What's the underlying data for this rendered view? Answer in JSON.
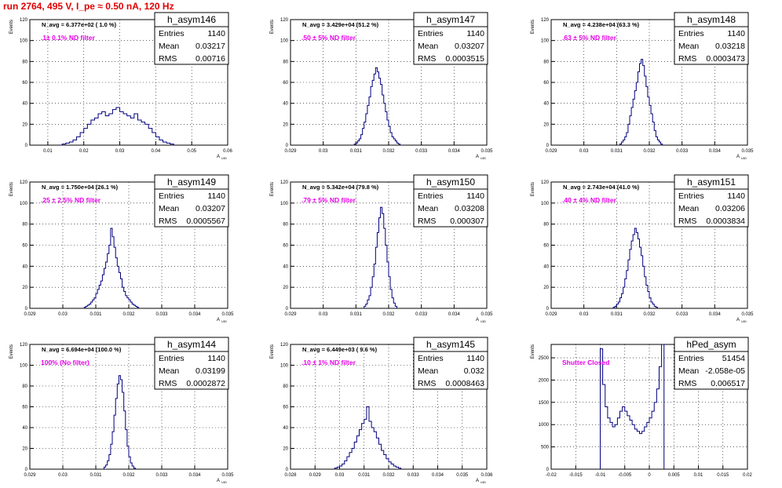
{
  "run_title": "run 2764,   495 V, I_pe ≈ 0.50 nA, 120 Hz",
  "colors": {
    "line": "#00007f",
    "annotation": "#e800e8",
    "title": "#e00000",
    "grid": "#000000"
  },
  "chart_data": [
    {
      "type": "bar",
      "stat_title": "h_asym146",
      "navg": "N_avg = 6.377e+02 ( 1.0 %)",
      "filter": ".1± 0.1% ND filter",
      "stats": [
        [
          "Entries",
          "1140"
        ],
        [
          "Mean",
          "0.03217"
        ],
        [
          "RMS",
          "0.00716"
        ]
      ],
      "xlabel": "A_UID",
      "ylabel": "Events",
      "xlim": [
        0.005,
        0.06
      ],
      "ylim": [
        0,
        120
      ],
      "xticks": [
        0.01,
        0.02,
        0.03,
        0.04,
        0.05,
        0.06
      ],
      "xticklabels": [
        "0.01",
        "0.02",
        "0.03",
        "0.04",
        "0.05",
        "0.06"
      ],
      "yticks": [
        0,
        20,
        40,
        60,
        80,
        100,
        120
      ],
      "bin_start": 0.014,
      "bin_width": 0.001,
      "values": [
        1,
        2,
        3,
        5,
        8,
        12,
        16,
        20,
        24,
        26,
        30,
        32,
        28,
        30,
        34,
        36,
        32,
        30,
        28,
        26,
        30,
        24,
        22,
        20,
        16,
        12,
        8,
        5,
        3,
        2,
        1
      ]
    },
    {
      "type": "bar",
      "stat_title": "h_asym147",
      "navg": "N_avg = 3.429e+04 (51.2 %)",
      "filter": ".50 ± 5% ND filter",
      "stats": [
        [
          "Entries",
          "1140"
        ],
        [
          "Mean",
          "0.03207"
        ],
        [
          "RMS",
          "0.0003515"
        ]
      ],
      "xlabel": "A_UID",
      "ylabel": "Events",
      "xlim": [
        0.029,
        0.035
      ],
      "ylim": [
        0,
        120
      ],
      "xticks": [
        0.029,
        0.03,
        0.031,
        0.032,
        0.033,
        0.034,
        0.035
      ],
      "xticklabels": [
        "0.029",
        "0.03",
        "0.031",
        "0.032",
        "0.033",
        "0.034",
        "0.035"
      ],
      "yticks": [
        0,
        20,
        40,
        60,
        80,
        100,
        120
      ],
      "bin_start": 0.03095,
      "bin_width": 5e-05,
      "values": [
        1,
        2,
        4,
        6,
        10,
        16,
        22,
        30,
        38,
        46,
        56,
        62,
        68,
        74,
        70,
        64,
        58,
        48,
        40,
        32,
        24,
        18,
        12,
        8,
        6,
        4,
        2,
        1
      ]
    },
    {
      "type": "bar",
      "stat_title": "h_asym148",
      "navg": "N_avg = 4.238e+04 (63.3 %)",
      "filter": ".63 ± 5% ND filter",
      "stats": [
        [
          "Entries",
          "1140"
        ],
        [
          "Mean",
          "0.03218"
        ],
        [
          "RMS",
          "0.0003473"
        ]
      ],
      "xlabel": "A_UID",
      "ylabel": "Events",
      "xlim": [
        0.029,
        0.035
      ],
      "ylim": [
        0,
        120
      ],
      "xticks": [
        0.029,
        0.03,
        0.031,
        0.032,
        0.033,
        0.034,
        0.035
      ],
      "xticklabels": [
        "0.029",
        "0.03",
        "0.031",
        "0.032",
        "0.033",
        "0.034",
        "0.035"
      ],
      "yticks": [
        0,
        20,
        40,
        60,
        80,
        100,
        120
      ],
      "bin_start": 0.0311,
      "bin_width": 5e-05,
      "values": [
        1,
        3,
        5,
        8,
        12,
        20,
        28,
        36,
        44,
        52,
        60,
        70,
        78,
        82,
        76,
        66,
        56,
        46,
        38,
        30,
        22,
        14,
        8,
        5,
        3,
        1
      ]
    },
    {
      "type": "bar",
      "stat_title": "h_asym149",
      "navg": "N_avg = 1.750e+04 (26.1 %)",
      "filter": ".25 ± 2.5% ND filter",
      "stats": [
        [
          "Entries",
          "1140"
        ],
        [
          "Mean",
          "0.03207"
        ],
        [
          "RMS",
          "0.0005567"
        ]
      ],
      "xlabel": "A_UID",
      "ylabel": "Events",
      "xlim": [
        0.029,
        0.035
      ],
      "ylim": [
        0,
        120
      ],
      "xticks": [
        0.029,
        0.03,
        0.031,
        0.032,
        0.033,
        0.034,
        0.035
      ],
      "xticklabels": [
        "0.029",
        "0.03",
        "0.031",
        "0.032",
        "0.033",
        "0.034",
        "0.035"
      ],
      "yticks": [
        0,
        20,
        40,
        60,
        80,
        100,
        120
      ],
      "bin_start": 0.03065,
      "bin_width": 5e-05,
      "values": [
        1,
        2,
        3,
        4,
        6,
        8,
        10,
        14,
        18,
        22,
        26,
        32,
        38,
        44,
        52,
        60,
        76,
        68,
        58,
        48,
        40,
        34,
        28,
        20,
        16,
        12,
        10,
        8,
        6,
        4,
        3,
        2,
        1
      ]
    },
    {
      "type": "bar",
      "stat_title": "h_asym150",
      "navg": "N_avg = 5.342e+04 (79.8 %)",
      "filter": ".79 ± 5% ND filter",
      "stats": [
        [
          "Entries",
          "1140"
        ],
        [
          "Mean",
          "0.03208"
        ],
        [
          "RMS",
          "0.000307"
        ]
      ],
      "xlabel": "A_UID",
      "ylabel": "Events",
      "xlim": [
        0.029,
        0.035
      ],
      "ylim": [
        0,
        120
      ],
      "xticks": [
        0.029,
        0.03,
        0.031,
        0.032,
        0.033,
        0.034,
        0.035
      ],
      "xticklabels": [
        "0.029",
        "0.03",
        "0.031",
        "0.032",
        "0.033",
        "0.034",
        "0.035"
      ],
      "yticks": [
        0,
        20,
        40,
        60,
        80,
        100,
        120
      ],
      "bin_start": 0.03125,
      "bin_width": 5e-05,
      "values": [
        2,
        4,
        8,
        12,
        20,
        30,
        42,
        58,
        72,
        86,
        96,
        90,
        76,
        60,
        44,
        30,
        18,
        10,
        5,
        2
      ]
    },
    {
      "type": "bar",
      "stat_title": "h_asym151",
      "navg": "N_avg = 2.743e+04 (41.0 %)",
      "filter": ".40 ± 4% ND filter",
      "stats": [
        [
          "Entries",
          "1140"
        ],
        [
          "Mean",
          "0.03206"
        ],
        [
          "RMS",
          "0.0003834"
        ]
      ],
      "xlabel": "A_UID",
      "ylabel": "Events",
      "xlim": [
        0.029,
        0.035
      ],
      "ylim": [
        0,
        120
      ],
      "xticks": [
        0.029,
        0.03,
        0.031,
        0.032,
        0.033,
        0.034,
        0.035
      ],
      "xticklabels": [
        "0.029",
        "0.03",
        "0.031",
        "0.032",
        "0.033",
        "0.034",
        "0.035"
      ],
      "yticks": [
        0,
        20,
        40,
        60,
        80,
        100,
        120
      ],
      "bin_start": 0.0309,
      "bin_width": 5e-05,
      "values": [
        1,
        2,
        4,
        6,
        10,
        14,
        20,
        28,
        36,
        46,
        56,
        64,
        70,
        76,
        72,
        66,
        58,
        50,
        40,
        30,
        22,
        16,
        10,
        6,
        4,
        2,
        1
      ]
    },
    {
      "type": "bar",
      "stat_title": "h_asym144",
      "navg": "N_avg = 6.694e+04 (100.0 %)",
      "filter": "100% (No filter)",
      "stats": [
        [
          "Entries",
          "1140"
        ],
        [
          "Mean",
          "0.03199"
        ],
        [
          "RMS",
          "0.0002872"
        ]
      ],
      "xlabel": "A_UID",
      "ylabel": "Events",
      "xlim": [
        0.029,
        0.035
      ],
      "ylim": [
        0,
        120
      ],
      "xticks": [
        0.029,
        0.03,
        0.031,
        0.032,
        0.033,
        0.034,
        0.035
      ],
      "xticklabels": [
        "0.029",
        "0.03",
        "0.031",
        "0.032",
        "0.033",
        "0.034",
        "0.035"
      ],
      "yticks": [
        0,
        20,
        40,
        60,
        80,
        100,
        120
      ],
      "bin_start": 0.03125,
      "bin_width": 5e-05,
      "values": [
        2,
        4,
        8,
        14,
        24,
        36,
        52,
        68,
        82,
        90,
        86,
        74,
        56,
        38,
        22,
        12,
        6,
        3,
        1
      ]
    },
    {
      "type": "bar",
      "stat_title": "h_asym145",
      "navg": "N_avg = 6.449e+03 ( 9.6 %)",
      "filter": ".10 ± 1% ND filter",
      "stats": [
        [
          "Entries",
          "1140"
        ],
        [
          "Mean",
          "0.032"
        ],
        [
          "RMS",
          "0.0008463"
        ]
      ],
      "xlabel": "A_UID",
      "ylabel": "Events",
      "xlim": [
        0.028,
        0.036
      ],
      "ylim": [
        0,
        120
      ],
      "xticks": [
        0.028,
        0.029,
        0.03,
        0.031,
        0.032,
        0.033,
        0.034,
        0.035,
        0.036
      ],
      "xticklabels": [
        "0.028",
        "0.029",
        "0.03",
        "0.031",
        "0.032",
        "0.033",
        "0.034",
        "0.035",
        "0.036"
      ],
      "yticks": [
        0,
        20,
        40,
        60,
        80,
        100,
        120
      ],
      "bin_start": 0.0298,
      "bin_width": 0.0001,
      "values": [
        1,
        2,
        3,
        5,
        8,
        12,
        16,
        20,
        26,
        32,
        38,
        44,
        48,
        60,
        46,
        40,
        36,
        30,
        24,
        18,
        14,
        10,
        7,
        5,
        3,
        2,
        1
      ]
    },
    {
      "type": "bar",
      "stat_title": "hPed_asym",
      "navg": "",
      "filter": "Shutter Closed",
      "stats": [
        [
          "Entries",
          "51454"
        ],
        [
          "Mean",
          "-2.058e-05"
        ],
        [
          "RMS",
          "0.006517"
        ]
      ],
      "xlabel": "",
      "ylabel": "Events",
      "xlim": [
        -0.02,
        0.02
      ],
      "ylim": [
        0,
        2800
      ],
      "xticks": [
        -0.02,
        -0.015,
        -0.01,
        -0.005,
        0,
        0.005,
        0.01,
        0.015,
        0.02
      ],
      "xticklabels": [
        "-0.02",
        "-0.015",
        "-0.01",
        "-0.005",
        "0",
        "0.005",
        "0.01",
        "0.015",
        "0.02"
      ],
      "yticks": [
        0,
        500,
        1000,
        1500,
        2000,
        2500
      ],
      "bin_start": -0.01,
      "bin_width": 0.0005,
      "values": [
        2700,
        1900,
        1400,
        1150,
        1050,
        950,
        1000,
        1150,
        1300,
        1400,
        1300,
        1200,
        1100,
        1000,
        900,
        850,
        800,
        850,
        950,
        1050,
        1150,
        1300,
        1500,
        1800,
        2300,
        2800
      ]
    }
  ]
}
